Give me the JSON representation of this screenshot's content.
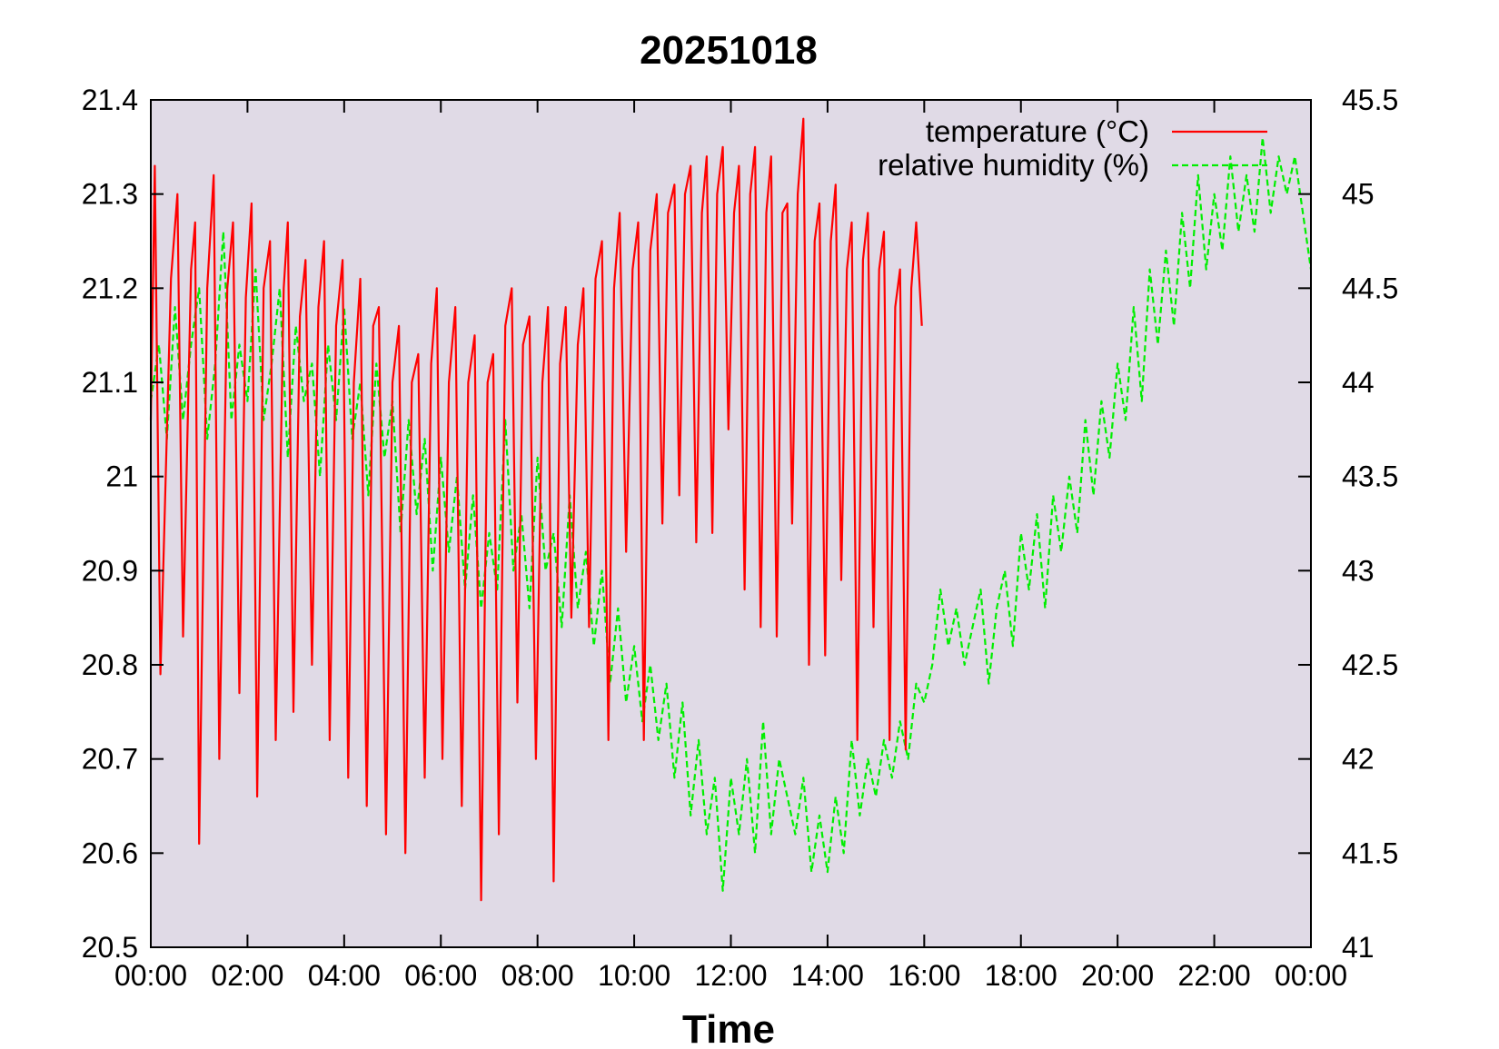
{
  "chart_data": {
    "type": "line",
    "title": "20251018",
    "xlabel": "Time",
    "ylabel": "",
    "y2label": "",
    "xlim": [
      "00:00",
      "24:00"
    ],
    "x_tick_labels": [
      "00:00",
      "02:00",
      "04:00",
      "06:00",
      "08:00",
      "10:00",
      "12:00",
      "14:00",
      "16:00",
      "18:00",
      "20:00",
      "22:00",
      "00:00"
    ],
    "ylim": [
      20.5,
      21.4
    ],
    "y_tick_labels": [
      "20.5",
      "20.6",
      "20.7",
      "20.8",
      "20.9",
      "21",
      "21.1",
      "21.2",
      "21.3",
      "21.4"
    ],
    "y2lim": [
      41,
      45.5
    ],
    "y2_tick_labels": [
      "41",
      "41.5",
      "42",
      "42.5",
      "43",
      "43.5",
      "44",
      "44.5",
      "45",
      "45.5"
    ],
    "grid": false,
    "legend_position": "top-right",
    "plot_background": "#e0dae6",
    "series": [
      {
        "name": "temperature (°C)",
        "axis": "left",
        "color": "#ff0000",
        "dash": "solid",
        "points": [
          [
            "00:00",
            21.06
          ],
          [
            "00:05",
            21.33
          ],
          [
            "00:12",
            20.79
          ],
          [
            "00:25",
            21.21
          ],
          [
            "00:33",
            21.3
          ],
          [
            "00:40",
            20.83
          ],
          [
            "00:50",
            21.22
          ],
          [
            "00:55",
            21.27
          ],
          [
            "01:00",
            20.61
          ],
          [
            "01:10",
            21.2
          ],
          [
            "01:18",
            21.32
          ],
          [
            "01:25",
            20.7
          ],
          [
            "01:35",
            21.2
          ],
          [
            "01:42",
            21.27
          ],
          [
            "01:50",
            20.77
          ],
          [
            "01:58",
            21.19
          ],
          [
            "02:05",
            21.29
          ],
          [
            "02:12",
            20.66
          ],
          [
            "02:20",
            21.2
          ],
          [
            "02:28",
            21.25
          ],
          [
            "02:35",
            20.72
          ],
          [
            "02:45",
            21.2
          ],
          [
            "02:50",
            21.27
          ],
          [
            "02:57",
            20.75
          ],
          [
            "03:05",
            21.17
          ],
          [
            "03:12",
            21.23
          ],
          [
            "03:20",
            20.8
          ],
          [
            "03:28",
            21.18
          ],
          [
            "03:35",
            21.25
          ],
          [
            "03:42",
            20.72
          ],
          [
            "03:50",
            21.16
          ],
          [
            "03:58",
            21.23
          ],
          [
            "04:05",
            20.68
          ],
          [
            "04:12",
            21.1
          ],
          [
            "04:20",
            21.21
          ],
          [
            "04:28",
            20.65
          ],
          [
            "04:36",
            21.16
          ],
          [
            "04:43",
            21.18
          ],
          [
            "04:52",
            20.62
          ],
          [
            "05:00",
            21.1
          ],
          [
            "05:08",
            21.16
          ],
          [
            "05:16",
            20.6
          ],
          [
            "05:24",
            21.1
          ],
          [
            "05:32",
            21.13
          ],
          [
            "05:40",
            20.68
          ],
          [
            "05:48",
            21.12
          ],
          [
            "05:55",
            21.2
          ],
          [
            "06:02",
            20.7
          ],
          [
            "06:10",
            21.1
          ],
          [
            "06:18",
            21.18
          ],
          [
            "06:26",
            20.65
          ],
          [
            "06:34",
            21.1
          ],
          [
            "06:42",
            21.15
          ],
          [
            "06:50",
            20.55
          ],
          [
            "06:58",
            21.1
          ],
          [
            "07:05",
            21.13
          ],
          [
            "07:12",
            20.62
          ],
          [
            "07:20",
            21.16
          ],
          [
            "07:28",
            21.2
          ],
          [
            "07:35",
            20.76
          ],
          [
            "07:42",
            21.14
          ],
          [
            "07:50",
            21.17
          ],
          [
            "07:58",
            20.7
          ],
          [
            "08:06",
            21.1
          ],
          [
            "08:13",
            21.18
          ],
          [
            "08:20",
            20.57
          ],
          [
            "08:28",
            21.12
          ],
          [
            "08:35",
            21.18
          ],
          [
            "08:42",
            20.85
          ],
          [
            "08:50",
            21.14
          ],
          [
            "08:57",
            21.2
          ],
          [
            "09:04",
            20.84
          ],
          [
            "09:12",
            21.21
          ],
          [
            "09:20",
            21.25
          ],
          [
            "09:28",
            20.72
          ],
          [
            "09:35",
            21.2
          ],
          [
            "09:42",
            21.28
          ],
          [
            "09:50",
            20.92
          ],
          [
            "09:58",
            21.22
          ],
          [
            "10:05",
            21.27
          ],
          [
            "10:12",
            20.72
          ],
          [
            "10:20",
            21.24
          ],
          [
            "10:28",
            21.3
          ],
          [
            "10:35",
            20.95
          ],
          [
            "10:42",
            21.28
          ],
          [
            "10:50",
            21.31
          ],
          [
            "10:56",
            20.98
          ],
          [
            "11:03",
            21.3
          ],
          [
            "11:10",
            21.33
          ],
          [
            "11:17",
            20.93
          ],
          [
            "11:24",
            21.28
          ],
          [
            "11:30",
            21.34
          ],
          [
            "11:37",
            20.94
          ],
          [
            "11:43",
            21.3
          ],
          [
            "11:50",
            21.35
          ],
          [
            "11:57",
            21.05
          ],
          [
            "12:04",
            21.28
          ],
          [
            "12:10",
            21.33
          ],
          [
            "12:17",
            20.88
          ],
          [
            "12:24",
            21.3
          ],
          [
            "12:30",
            21.35
          ],
          [
            "12:37",
            20.84
          ],
          [
            "12:44",
            21.28
          ],
          [
            "12:50",
            21.34
          ],
          [
            "12:57",
            20.83
          ],
          [
            "13:04",
            21.28
          ],
          [
            "13:10",
            21.29
          ],
          [
            "13:16",
            20.95
          ],
          [
            "13:23",
            21.3
          ],
          [
            "13:30",
            21.38
          ],
          [
            "13:37",
            20.8
          ],
          [
            "13:44",
            21.25
          ],
          [
            "13:50",
            21.29
          ],
          [
            "13:57",
            20.81
          ],
          [
            "14:04",
            21.25
          ],
          [
            "14:10",
            21.31
          ],
          [
            "14:17",
            20.89
          ],
          [
            "14:24",
            21.22
          ],
          [
            "14:30",
            21.27
          ],
          [
            "14:37",
            20.72
          ],
          [
            "14:44",
            21.23
          ],
          [
            "14:50",
            21.28
          ],
          [
            "14:57",
            20.84
          ],
          [
            "15:04",
            21.22
          ],
          [
            "15:10",
            21.26
          ],
          [
            "15:17",
            20.72
          ],
          [
            "15:24",
            21.18
          ],
          [
            "15:30",
            21.22
          ],
          [
            "15:37",
            20.71
          ],
          [
            "15:44",
            21.2
          ],
          [
            "15:50",
            21.27
          ],
          [
            "15:57",
            21.16
          ]
        ]
      },
      {
        "name": "relative humidity (%)",
        "axis": "right",
        "color": "#00ee00",
        "dash": "dashed",
        "points": [
          [
            "00:00",
            43.9
          ],
          [
            "00:10",
            44.2
          ],
          [
            "00:20",
            43.7
          ],
          [
            "00:30",
            44.4
          ],
          [
            "00:40",
            43.8
          ],
          [
            "00:50",
            44.2
          ],
          [
            "01:00",
            44.5
          ],
          [
            "01:10",
            43.7
          ],
          [
            "01:20",
            44.1
          ],
          [
            "01:30",
            44.8
          ],
          [
            "01:40",
            43.8
          ],
          [
            "01:50",
            44.2
          ],
          [
            "02:00",
            43.9
          ],
          [
            "02:10",
            44.6
          ],
          [
            "02:20",
            43.8
          ],
          [
            "02:30",
            44.1
          ],
          [
            "02:40",
            44.5
          ],
          [
            "02:50",
            43.6
          ],
          [
            "03:00",
            44.3
          ],
          [
            "03:10",
            43.9
          ],
          [
            "03:20",
            44.1
          ],
          [
            "03:30",
            43.5
          ],
          [
            "03:40",
            44.2
          ],
          [
            "03:50",
            43.8
          ],
          [
            "04:00",
            44.4
          ],
          [
            "04:10",
            43.7
          ],
          [
            "04:20",
            44.0
          ],
          [
            "04:30",
            43.4
          ],
          [
            "04:40",
            44.1
          ],
          [
            "04:50",
            43.6
          ],
          [
            "05:00",
            43.9
          ],
          [
            "05:10",
            43.2
          ],
          [
            "05:20",
            43.8
          ],
          [
            "05:30",
            43.3
          ],
          [
            "05:40",
            43.7
          ],
          [
            "05:50",
            43.0
          ],
          [
            "06:00",
            43.6
          ],
          [
            "06:10",
            43.1
          ],
          [
            "06:20",
            43.5
          ],
          [
            "06:30",
            42.9
          ],
          [
            "06:40",
            43.4
          ],
          [
            "06:50",
            42.8
          ],
          [
            "07:00",
            43.2
          ],
          [
            "07:10",
            42.9
          ],
          [
            "07:20",
            43.8
          ],
          [
            "07:30",
            43.0
          ],
          [
            "07:40",
            43.3
          ],
          [
            "07:50",
            42.8
          ],
          [
            "08:00",
            43.6
          ],
          [
            "08:10",
            43.0
          ],
          [
            "08:20",
            43.2
          ],
          [
            "08:30",
            42.7
          ],
          [
            "08:40",
            43.4
          ],
          [
            "08:50",
            42.8
          ],
          [
            "09:00",
            43.1
          ],
          [
            "09:10",
            42.6
          ],
          [
            "09:20",
            43.0
          ],
          [
            "09:30",
            42.4
          ],
          [
            "09:40",
            42.8
          ],
          [
            "09:50",
            42.3
          ],
          [
            "10:00",
            42.6
          ],
          [
            "10:10",
            42.2
          ],
          [
            "10:20",
            42.5
          ],
          [
            "10:30",
            42.1
          ],
          [
            "10:40",
            42.4
          ],
          [
            "10:50",
            41.9
          ],
          [
            "11:00",
            42.3
          ],
          [
            "11:10",
            41.7
          ],
          [
            "11:20",
            42.1
          ],
          [
            "11:30",
            41.6
          ],
          [
            "11:40",
            41.9
          ],
          [
            "11:50",
            41.3
          ],
          [
            "12:00",
            41.9
          ],
          [
            "12:10",
            41.6
          ],
          [
            "12:20",
            42.0
          ],
          [
            "12:30",
            41.5
          ],
          [
            "12:40",
            42.2
          ],
          [
            "12:50",
            41.6
          ],
          [
            "13:00",
            42.0
          ],
          [
            "13:10",
            41.8
          ],
          [
            "13:20",
            41.6
          ],
          [
            "13:30",
            41.9
          ],
          [
            "13:40",
            41.4
          ],
          [
            "13:50",
            41.7
          ],
          [
            "14:00",
            41.4
          ],
          [
            "14:10",
            41.8
          ],
          [
            "14:20",
            41.5
          ],
          [
            "14:30",
            42.1
          ],
          [
            "14:40",
            41.7
          ],
          [
            "14:50",
            42.0
          ],
          [
            "15:00",
            41.8
          ],
          [
            "15:10",
            42.1
          ],
          [
            "15:20",
            41.9
          ],
          [
            "15:30",
            42.2
          ],
          [
            "15:40",
            42.0
          ],
          [
            "15:50",
            42.4
          ],
          [
            "16:00",
            42.3
          ],
          [
            "16:10",
            42.5
          ],
          [
            "16:20",
            42.9
          ],
          [
            "16:30",
            42.6
          ],
          [
            "16:40",
            42.8
          ],
          [
            "16:50",
            42.5
          ],
          [
            "17:00",
            42.7
          ],
          [
            "17:10",
            42.9
          ],
          [
            "17:20",
            42.4
          ],
          [
            "17:30",
            42.8
          ],
          [
            "17:40",
            43.0
          ],
          [
            "17:50",
            42.6
          ],
          [
            "18:00",
            43.2
          ],
          [
            "18:10",
            42.9
          ],
          [
            "18:20",
            43.3
          ],
          [
            "18:30",
            42.8
          ],
          [
            "18:40",
            43.4
          ],
          [
            "18:50",
            43.1
          ],
          [
            "19:00",
            43.5
          ],
          [
            "19:10",
            43.2
          ],
          [
            "19:20",
            43.8
          ],
          [
            "19:30",
            43.4
          ],
          [
            "19:40",
            43.9
          ],
          [
            "19:50",
            43.6
          ],
          [
            "20:00",
            44.1
          ],
          [
            "20:10",
            43.8
          ],
          [
            "20:20",
            44.4
          ],
          [
            "20:30",
            43.9
          ],
          [
            "20:40",
            44.6
          ],
          [
            "20:50",
            44.2
          ],
          [
            "21:00",
            44.7
          ],
          [
            "21:10",
            44.3
          ],
          [
            "21:20",
            44.9
          ],
          [
            "21:30",
            44.5
          ],
          [
            "21:40",
            45.1
          ],
          [
            "21:50",
            44.6
          ],
          [
            "22:00",
            45.0
          ],
          [
            "22:10",
            44.7
          ],
          [
            "22:20",
            45.2
          ],
          [
            "22:30",
            44.8
          ],
          [
            "22:40",
            45.1
          ],
          [
            "22:50",
            44.8
          ],
          [
            "23:00",
            45.3
          ],
          [
            "23:10",
            44.9
          ],
          [
            "23:20",
            45.2
          ],
          [
            "23:30",
            45.0
          ],
          [
            "23:40",
            45.2
          ],
          [
            "23:50",
            44.9
          ],
          [
            "24:00",
            44.6
          ]
        ]
      }
    ]
  }
}
